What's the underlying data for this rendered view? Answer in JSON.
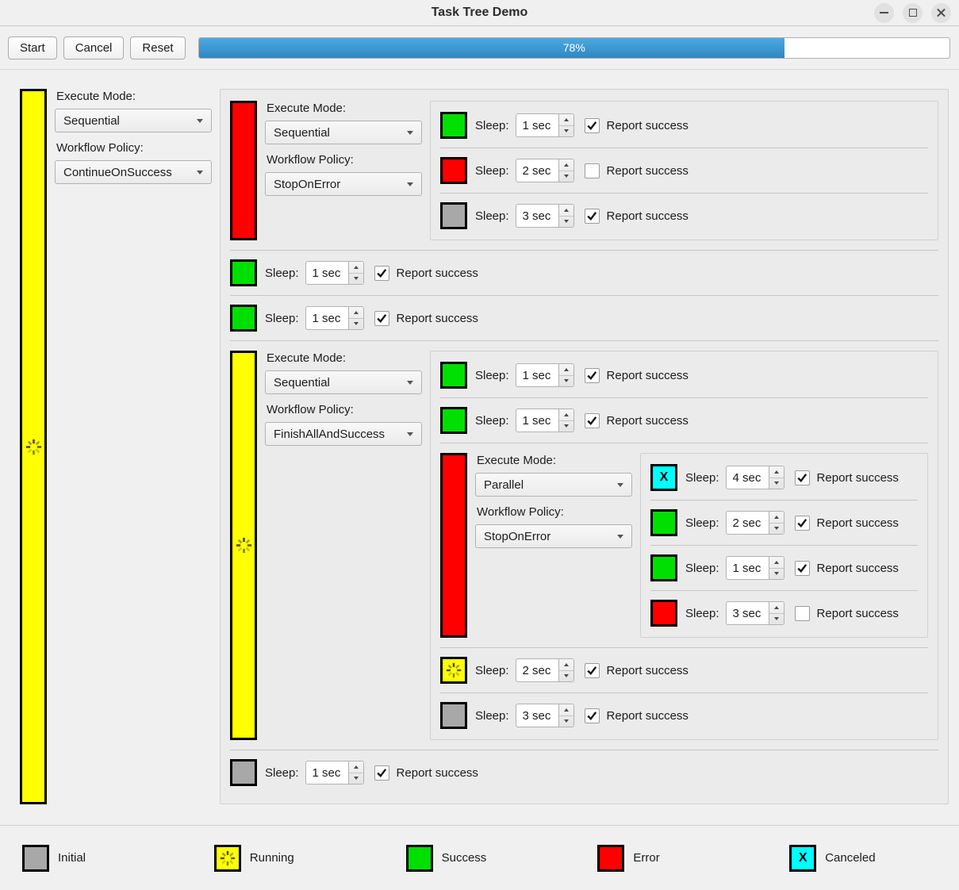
{
  "window": {
    "title": "Task Tree Demo"
  },
  "toolbar": {
    "start_label": "Start",
    "cancel_label": "Cancel",
    "reset_label": "Reset",
    "progress_percent": 78,
    "progress_text": "78%"
  },
  "labels": {
    "execute_mode": "Execute Mode:",
    "workflow_policy": "Workflow Policy:",
    "sleep": "Sleep:",
    "report_success": "Report success"
  },
  "icons": {
    "canceled_x": "X"
  },
  "colors": {
    "initial": "#a8a8a8",
    "running": "#ffff00",
    "success": "#00e000",
    "error": "#ff0000",
    "canceled": "#00ffff",
    "progress_blue": "#3b97d3"
  },
  "root": {
    "status": "running",
    "execute_mode": "Sequential",
    "workflow_policy": "ContinueOnSuccess",
    "children": [
      {
        "type": "group",
        "status": "error",
        "execute_mode": "Sequential",
        "workflow_policy": "StopOnError",
        "children": [
          {
            "type": "task",
            "status": "success",
            "sleep": "1 sec",
            "report_success": true
          },
          {
            "type": "task",
            "status": "error",
            "sleep": "2 sec",
            "report_success": false
          },
          {
            "type": "task",
            "status": "initial",
            "sleep": "3 sec",
            "report_success": true
          }
        ]
      },
      {
        "type": "task",
        "status": "success",
        "sleep": "1 sec",
        "report_success": true
      },
      {
        "type": "task",
        "status": "success",
        "sleep": "1 sec",
        "report_success": true
      },
      {
        "type": "group",
        "status": "running",
        "execute_mode": "Sequential",
        "workflow_policy": "FinishAllAndSuccess",
        "children": [
          {
            "type": "task",
            "status": "success",
            "sleep": "1 sec",
            "report_success": true
          },
          {
            "type": "task",
            "status": "success",
            "sleep": "1 sec",
            "report_success": true
          },
          {
            "type": "group",
            "status": "error",
            "execute_mode": "Parallel",
            "workflow_policy": "StopOnError",
            "children": [
              {
                "type": "task",
                "status": "canceled",
                "sleep": "4 sec",
                "report_success": true
              },
              {
                "type": "task",
                "status": "success",
                "sleep": "2 sec",
                "report_success": true
              },
              {
                "type": "task",
                "status": "success",
                "sleep": "1 sec",
                "report_success": true
              },
              {
                "type": "task",
                "status": "error",
                "sleep": "3 sec",
                "report_success": false
              }
            ]
          },
          {
            "type": "task",
            "status": "running",
            "sleep": "2 sec",
            "report_success": true
          },
          {
            "type": "task",
            "status": "initial",
            "sleep": "3 sec",
            "report_success": true
          }
        ]
      },
      {
        "type": "task",
        "status": "initial",
        "sleep": "1 sec",
        "report_success": true
      }
    ]
  },
  "legend": [
    {
      "status": "initial",
      "label": "Initial"
    },
    {
      "status": "running",
      "label": "Running"
    },
    {
      "status": "success",
      "label": "Success"
    },
    {
      "status": "error",
      "label": "Error"
    },
    {
      "status": "canceled",
      "label": "Canceled"
    }
  ]
}
